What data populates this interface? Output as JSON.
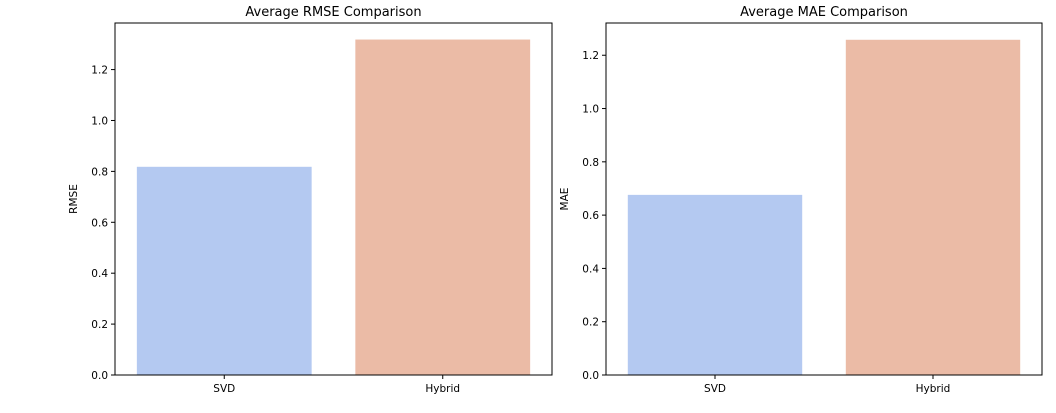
{
  "chart_data": [
    {
      "type": "bar",
      "title": "Average RMSE Comparison",
      "xlabel": "",
      "ylabel": "RMSE",
      "categories": [
        "SVD",
        "Hybrid"
      ],
      "values": [
        0.818,
        1.318
      ],
      "ylim": [
        0,
        1.383
      ],
      "yticks": [
        "0.0",
        "0.2",
        "0.4",
        "0.6",
        "0.8",
        "1.0",
        "1.2"
      ],
      "colors": [
        "#b4c9f1",
        "#ebbba6"
      ],
      "grid": false
    },
    {
      "type": "bar",
      "title": "Average MAE Comparison",
      "xlabel": "",
      "ylabel": "MAE",
      "categories": [
        "SVD",
        "Hybrid"
      ],
      "values": [
        0.676,
        1.258
      ],
      "ylim": [
        0,
        1.321
      ],
      "yticks": [
        "0.0",
        "0.2",
        "0.4",
        "0.6",
        "0.8",
        "1.0",
        "1.2"
      ],
      "colors": [
        "#b4c9f1",
        "#ebbba6"
      ],
      "grid": false
    }
  ]
}
